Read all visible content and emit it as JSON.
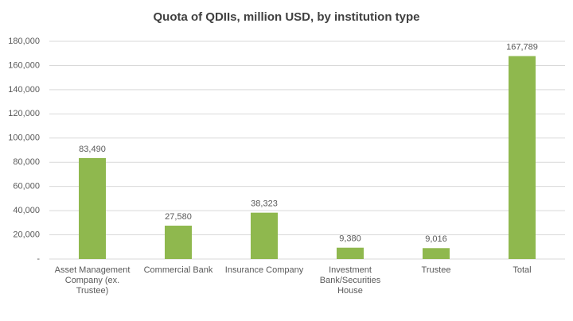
{
  "chart_data": {
    "type": "bar",
    "title": "Quota of QDIIs, million USD, by institution type",
    "categories": [
      "Asset Management Company (ex. Trustee)",
      "Commercial Bank",
      "Insurance Company",
      "Investment Bank/Securities House",
      "Trustee",
      "Total"
    ],
    "values": [
      83490,
      27580,
      38323,
      9380,
      9016,
      167789
    ],
    "value_labels": [
      "83,490",
      "27,580",
      "38,323",
      "9,380",
      "9,016",
      "167,789"
    ],
    "color": "#8fb84e",
    "ylim": [
      0,
      180000
    ],
    "yticks": [
      {
        "value": 0,
        "label": "-"
      },
      {
        "value": 20000,
        "label": "20,000"
      },
      {
        "value": 40000,
        "label": "40,000"
      },
      {
        "value": 60000,
        "label": "60,000"
      },
      {
        "value": 80000,
        "label": "80,000"
      },
      {
        "value": 100000,
        "label": "100,000"
      },
      {
        "value": 120000,
        "label": "120,000"
      },
      {
        "value": 140000,
        "label": "140,000"
      },
      {
        "value": 160000,
        "label": "160,000"
      },
      {
        "value": 180000,
        "label": "180,000"
      }
    ],
    "grid": true
  }
}
